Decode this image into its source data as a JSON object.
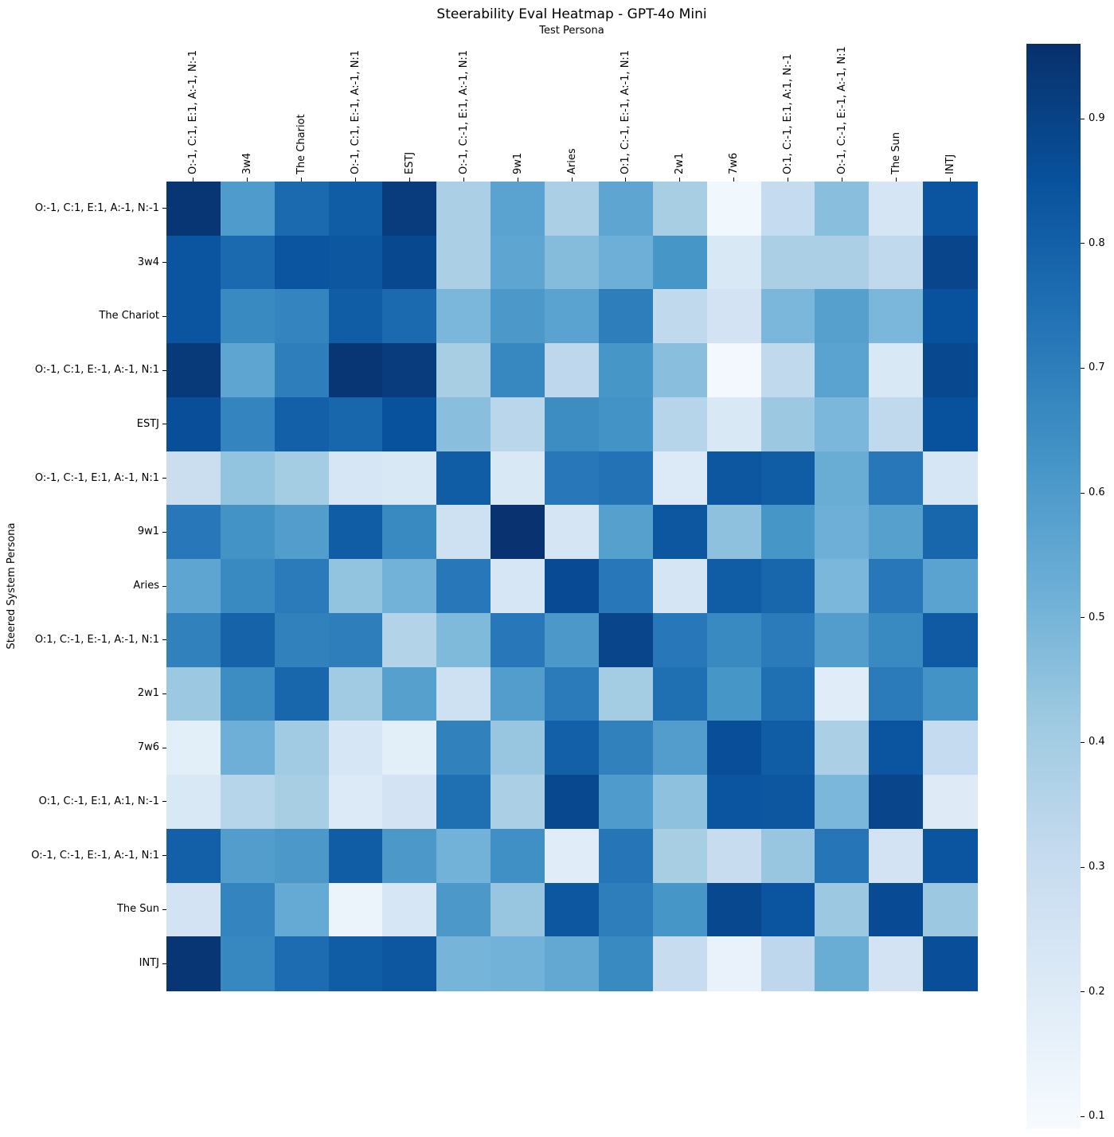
{
  "chart_data": {
    "type": "heatmap",
    "title": "Steerability Eval Heatmap - GPT-4o Mini",
    "xlabel": "Test Persona",
    "ylabel": "Steered System Persona",
    "x_categories": [
      "O:-1, C:1, E:1, A:-1, N:-1",
      "3w4",
      "The Chariot",
      "O:-1, C:1, E:-1, A:-1, N:1",
      "ESTJ",
      "O:-1, C:-1, E:1, A:-1, N:1",
      "9w1",
      "Aries",
      "O:1, C:-1, E:-1, A:-1, N:1",
      "2w1",
      "7w6",
      "O:1, C:-1, E:1, A:1, N:-1",
      "O:-1, C:-1, E:-1, A:-1, N:1",
      "The Sun",
      "INTJ"
    ],
    "y_categories": [
      "O:-1, C:1, E:1, A:-1, N:-1",
      "3w4",
      "The Chariot",
      "O:-1, C:1, E:-1, A:-1, N:1",
      "ESTJ",
      "O:-1, C:-1, E:1, A:-1, N:1",
      "9w1",
      "Aries",
      "O:1, C:-1, E:-1, A:-1, N:1",
      "2w1",
      "7w6",
      "O:1, C:-1, E:1, A:1, N:-1",
      "O:-1, C:-1, E:-1, A:-1, N:1",
      "The Sun",
      "INTJ"
    ],
    "matrix": [
      [
        0.94,
        0.6,
        0.77,
        0.81,
        0.92,
        0.38,
        0.57,
        0.38,
        0.56,
        0.39,
        0.12,
        0.31,
        0.46,
        0.24,
        0.84
      ],
      [
        0.84,
        0.77,
        0.84,
        0.83,
        0.88,
        0.38,
        0.56,
        0.47,
        0.52,
        0.62,
        0.22,
        0.38,
        0.38,
        0.32,
        0.89
      ],
      [
        0.84,
        0.66,
        0.68,
        0.81,
        0.77,
        0.49,
        0.61,
        0.57,
        0.7,
        0.32,
        0.25,
        0.49,
        0.58,
        0.49,
        0.85
      ],
      [
        0.93,
        0.56,
        0.7,
        0.94,
        0.92,
        0.39,
        0.67,
        0.33,
        0.62,
        0.46,
        0.11,
        0.32,
        0.57,
        0.22,
        0.88
      ],
      [
        0.86,
        0.68,
        0.8,
        0.78,
        0.85,
        0.46,
        0.34,
        0.65,
        0.63,
        0.35,
        0.22,
        0.42,
        0.49,
        0.32,
        0.85
      ],
      [
        0.29,
        0.44,
        0.4,
        0.23,
        0.22,
        0.81,
        0.22,
        0.72,
        0.74,
        0.21,
        0.83,
        0.81,
        0.53,
        0.72,
        0.23
      ],
      [
        0.72,
        0.63,
        0.59,
        0.81,
        0.66,
        0.27,
        0.95,
        0.24,
        0.58,
        0.83,
        0.45,
        0.62,
        0.52,
        0.58,
        0.78
      ],
      [
        0.56,
        0.66,
        0.71,
        0.44,
        0.51,
        0.72,
        0.23,
        0.87,
        0.72,
        0.24,
        0.81,
        0.78,
        0.49,
        0.72,
        0.57
      ],
      [
        0.69,
        0.79,
        0.69,
        0.7,
        0.36,
        0.48,
        0.72,
        0.61,
        0.89,
        0.72,
        0.66,
        0.71,
        0.59,
        0.66,
        0.82
      ],
      [
        0.42,
        0.65,
        0.78,
        0.41,
        0.58,
        0.27,
        0.59,
        0.71,
        0.4,
        0.75,
        0.62,
        0.75,
        0.19,
        0.71,
        0.63
      ],
      [
        0.18,
        0.52,
        0.41,
        0.23,
        0.18,
        0.69,
        0.43,
        0.8,
        0.69,
        0.59,
        0.86,
        0.81,
        0.38,
        0.84,
        0.31
      ],
      [
        0.22,
        0.35,
        0.39,
        0.21,
        0.25,
        0.75,
        0.38,
        0.88,
        0.6,
        0.45,
        0.84,
        0.83,
        0.49,
        0.89,
        0.2
      ],
      [
        0.8,
        0.59,
        0.61,
        0.81,
        0.61,
        0.51,
        0.64,
        0.19,
        0.73,
        0.39,
        0.3,
        0.43,
        0.73,
        0.25,
        0.84
      ],
      [
        0.25,
        0.68,
        0.54,
        0.14,
        0.23,
        0.61,
        0.43,
        0.83,
        0.7,
        0.62,
        0.88,
        0.84,
        0.42,
        0.87,
        0.42
      ],
      [
        0.94,
        0.67,
        0.76,
        0.81,
        0.83,
        0.5,
        0.51,
        0.55,
        0.66,
        0.3,
        0.15,
        0.33,
        0.53,
        0.25,
        0.86
      ]
    ],
    "colormap": "Blues",
    "vmin": 0.09,
    "vmax": 0.96,
    "colorbar_ticks": [
      "0.9",
      "0.8",
      "0.7",
      "0.6",
      "0.5",
      "0.4",
      "0.3",
      "0.2",
      "0.1"
    ],
    "colormap_stops": [
      [
        0.0,
        "#f7fbff"
      ],
      [
        0.125,
        "#deebf7"
      ],
      [
        0.25,
        "#c6dbef"
      ],
      [
        0.375,
        "#9ecae1"
      ],
      [
        0.5,
        "#6baed6"
      ],
      [
        0.625,
        "#4292c6"
      ],
      [
        0.75,
        "#2171b5"
      ],
      [
        0.875,
        "#08519c"
      ],
      [
        1.0,
        "#08306b"
      ]
    ],
    "legend_position": "right-colorbar",
    "grid": false
  }
}
